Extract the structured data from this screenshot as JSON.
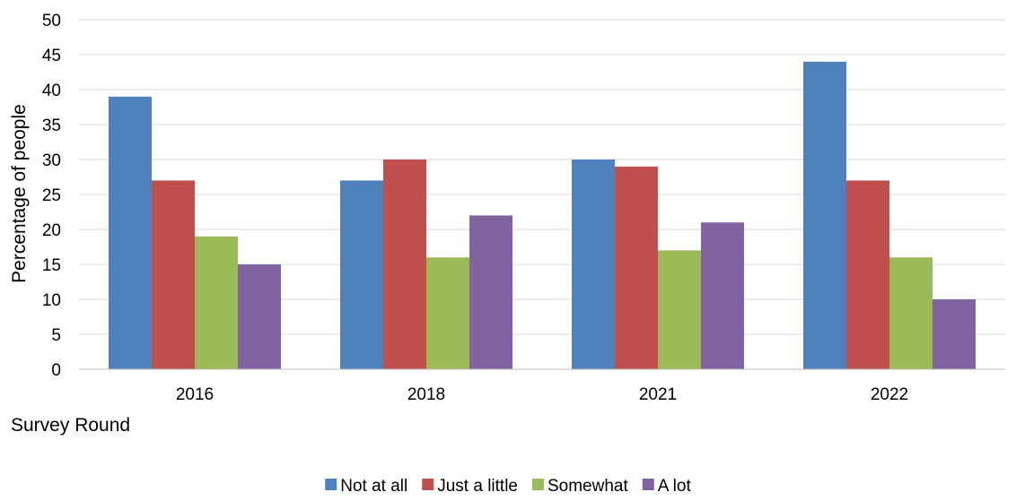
{
  "chart_data": {
    "type": "bar",
    "categories": [
      "2016",
      "2018",
      "2021",
      "2022"
    ],
    "series": [
      {
        "name": "Not at all",
        "color": "#4F81BD",
        "values": [
          39,
          27,
          30,
          44
        ]
      },
      {
        "name": "Just a little",
        "color": "#C0504D",
        "values": [
          27,
          30,
          29,
          27
        ]
      },
      {
        "name": "Somewhat",
        "color": "#9BBB59",
        "values": [
          19,
          16,
          17,
          16
        ]
      },
      {
        "name": "A lot",
        "color": "#8064A2",
        "values": [
          15,
          22,
          21,
          10
        ]
      }
    ],
    "xlabel": "Survey Round",
    "ylabel": "Percentage  of people",
    "ylim": [
      0,
      50
    ],
    "yticks": [
      0,
      5,
      10,
      15,
      20,
      25,
      30,
      35,
      40,
      45,
      50
    ],
    "grid": true,
    "legend_position": "bottom-center"
  }
}
